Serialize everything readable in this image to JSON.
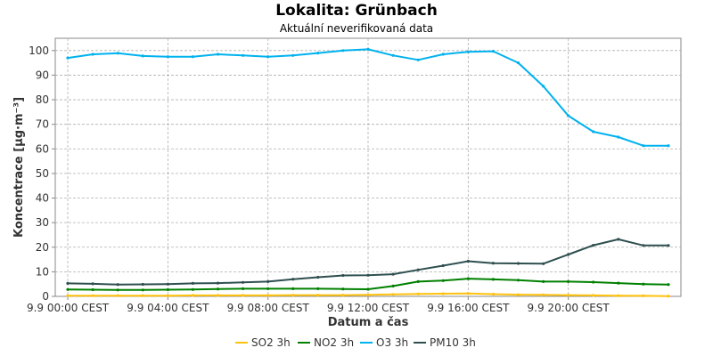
{
  "chart_data": {
    "type": "line",
    "title": "Lokalita: Grünbach",
    "subtitle": "Aktuální neverifikovaná data",
    "xlabel": "Datum a čas",
    "ylabel": "Koncentrace [µg·m⁻³]",
    "ylim": [
      0,
      105
    ],
    "xlim_hours": [
      -0.5,
      24.5
    ],
    "y_ticks": [
      0,
      10,
      20,
      30,
      40,
      50,
      60,
      70,
      80,
      90,
      100
    ],
    "x_ticks": [
      {
        "label": "9.9 00:00 CEST",
        "hour": 0
      },
      {
        "label": "9.9 04:00 CEST",
        "hour": 4
      },
      {
        "label": "9.9 08:00 CEST",
        "hour": 8
      },
      {
        "label": "9.9 12:00 CEST",
        "hour": 12
      },
      {
        "label": "9.9 16:00 CEST",
        "hour": 16
      },
      {
        "label": "9.9 20:00 CEST",
        "hour": 20
      }
    ],
    "grid": true,
    "legend_position": "bottom",
    "x_hours": [
      0,
      1,
      2,
      3,
      4,
      5,
      6,
      7,
      8,
      9,
      10,
      11,
      12,
      13,
      14,
      15,
      16,
      17,
      18,
      19,
      20,
      21,
      22,
      23,
      24
    ],
    "series": [
      {
        "name": "SO2 3h",
        "color": "#ffc20e",
        "values": [
          0.3,
          0.3,
          0.3,
          0.3,
          0.3,
          0.4,
          0.4,
          0.4,
          0.4,
          0.5,
          0.5,
          0.5,
          0.6,
          0.8,
          1.0,
          1.1,
          1.2,
          0.9,
          0.7,
          0.6,
          0.5,
          0.4,
          0.3,
          0.2,
          0.1
        ]
      },
      {
        "name": "NO2 3h",
        "color": "#008000",
        "values": [
          2.8,
          2.7,
          2.6,
          2.6,
          2.7,
          2.8,
          3.0,
          3.1,
          3.1,
          3.1,
          3.1,
          3.0,
          2.9,
          4.2,
          6.0,
          6.4,
          7.2,
          6.9,
          6.6,
          6.0,
          6.0,
          5.8,
          5.4,
          5.0,
          4.8
        ]
      },
      {
        "name": "O3 3h",
        "color": "#00b2ee",
        "values": [
          97.0,
          98.5,
          98.9,
          97.8,
          97.5,
          97.5,
          98.5,
          98.0,
          97.5,
          98.0,
          99.0,
          100.0,
          100.5,
          98.0,
          96.2,
          98.5,
          99.5,
          99.7,
          95.0,
          85.5,
          73.5,
          67.0,
          64.8,
          61.3,
          61.3
        ]
      },
      {
        "name": "PM10 3h",
        "color": "#2f4f4f",
        "values": [
          5.3,
          5.1,
          4.8,
          4.9,
          5.0,
          5.3,
          5.4,
          5.7,
          6.0,
          7.0,
          7.8,
          8.5,
          8.6,
          9.0,
          10.8,
          12.5,
          14.3,
          13.5,
          13.4,
          13.3,
          17.0,
          20.8,
          23.2,
          20.7,
          20.7
        ]
      }
    ]
  }
}
